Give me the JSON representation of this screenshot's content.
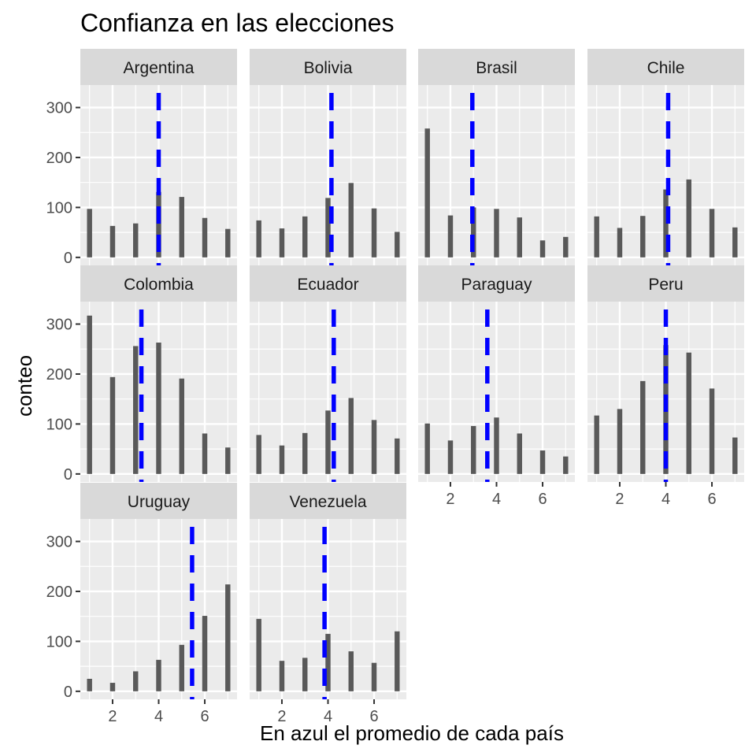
{
  "chart_data": {
    "type": "bar",
    "title": "Confianza en las elecciones",
    "xlabel": "En azul el promedio de cada país",
    "ylabel": "conteo",
    "x_ticks": [
      "2",
      "4",
      "6"
    ],
    "y_ticks": [
      "0",
      "100",
      "200",
      "300"
    ],
    "xlim": [
      0.6,
      7.4
    ],
    "ylim": [
      -16,
      345
    ],
    "grid": true,
    "mean_line_color": "#0000ff",
    "bar_color": "#595959",
    "panel_background": "#ebebeb",
    "strip_background": "#d9d9d9",
    "categories": [
      1,
      2,
      3,
      4,
      5,
      6,
      7
    ],
    "facets": [
      {
        "name": "Argentina",
        "values": [
          97,
          63,
          68,
          131,
          121,
          79,
          57
        ],
        "mean": 4.0
      },
      {
        "name": "Bolivia",
        "values": [
          74,
          58,
          82,
          119,
          149,
          98,
          51
        ],
        "mean": 4.15
      },
      {
        "name": "Brasil",
        "values": [
          258,
          84,
          100,
          97,
          80,
          34,
          41
        ],
        "mean": 2.95
      },
      {
        "name": "Chile",
        "values": [
          82,
          59,
          83,
          136,
          156,
          97,
          60
        ],
        "mean": 4.1
      },
      {
        "name": "Colombia",
        "values": [
          317,
          194,
          256,
          263,
          191,
          81,
          53
        ],
        "mean": 3.25
      },
      {
        "name": "Ecuador",
        "values": [
          78,
          57,
          82,
          127,
          152,
          108,
          71
        ],
        "mean": 4.25
      },
      {
        "name": "Paraguay",
        "values": [
          101,
          67,
          96,
          113,
          81,
          47,
          35
        ],
        "mean": 3.6
      },
      {
        "name": "Peru",
        "values": [
          117,
          130,
          186,
          258,
          243,
          171,
          73
        ],
        "mean": 4.0
      },
      {
        "name": "Uruguay",
        "values": [
          25,
          17,
          40,
          63,
          93,
          151,
          214
        ],
        "mean": 5.45
      },
      {
        "name": "Venezuela",
        "values": [
          145,
          61,
          67,
          115,
          80,
          57,
          120
        ],
        "mean": 3.85
      }
    ]
  }
}
